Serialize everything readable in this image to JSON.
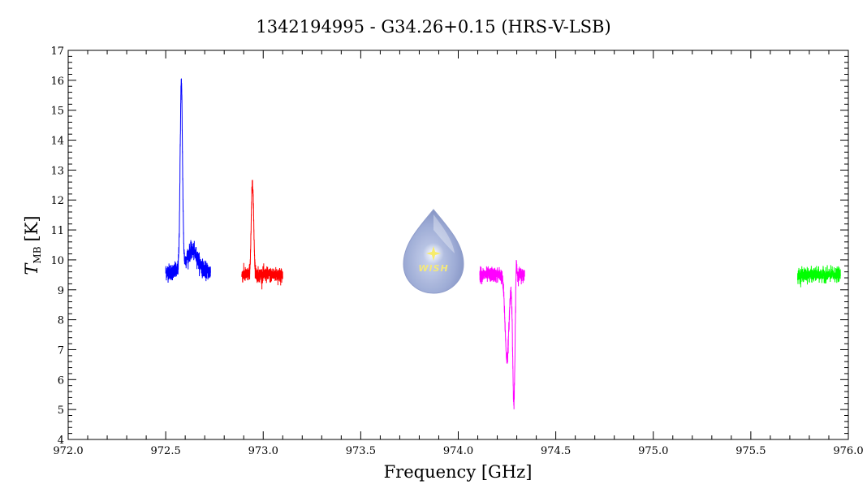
{
  "chart_data": {
    "type": "line",
    "title": "1342194995 - G34.26+0.15 (HRS-V-LSB)",
    "xlabel": "Frequency [GHz]",
    "ylabel_main": "T",
    "ylabel_sub": "MB",
    "ylabel_unit": "[K]",
    "xlim": [
      972.0,
      976.0
    ],
    "ylim": [
      4,
      17
    ],
    "x_ticks": [
      "972.0",
      "972.5",
      "973.0",
      "973.5",
      "974.0",
      "974.5",
      "975.0",
      "975.5",
      "976.0"
    ],
    "y_ticks": [
      "4",
      "5",
      "6",
      "7",
      "8",
      "9",
      "10",
      "11",
      "12",
      "13",
      "14",
      "15",
      "16",
      "17"
    ],
    "grid": false,
    "series": [
      {
        "color": "#0000ff",
        "x_range": [
          972.5,
          972.73
        ],
        "baseline": 9.6,
        "noise": 0.25,
        "features": [
          {
            "center": 972.58,
            "width": 0.006,
            "amplitude": 6.2
          },
          {
            "center": 972.635,
            "width": 0.03,
            "amplitude": 0.7
          }
        ],
        "peak": {
          "x": 972.58,
          "y": 15.8
        }
      },
      {
        "color": "#ff0000",
        "x_range": [
          972.89,
          973.1
        ],
        "baseline": 9.5,
        "noise": 0.22,
        "features": [
          {
            "center": 972.945,
            "width": 0.006,
            "amplitude": 3.1
          }
        ],
        "peak": {
          "x": 972.945,
          "y": 12.7
        }
      },
      {
        "color": "#ff00ff",
        "x_range": [
          974.11,
          974.34
        ],
        "baseline": 9.5,
        "noise": 0.22,
        "features": [
          {
            "center": 974.25,
            "width": 0.01,
            "amplitude": -2.8
          },
          {
            "center": 974.285,
            "width": 0.006,
            "amplitude": -4.3
          },
          {
            "center": 974.297,
            "width": 0.003,
            "amplitude": 0.8
          }
        ],
        "min": {
          "x": 974.285,
          "y": 4.85
        }
      },
      {
        "color": "#00ff00",
        "x_range": [
          975.74,
          975.96
        ],
        "baseline": 9.5,
        "noise": 0.2,
        "features": []
      }
    ]
  },
  "logo": {
    "text": "WISH",
    "icon": "water-drop-logo"
  }
}
